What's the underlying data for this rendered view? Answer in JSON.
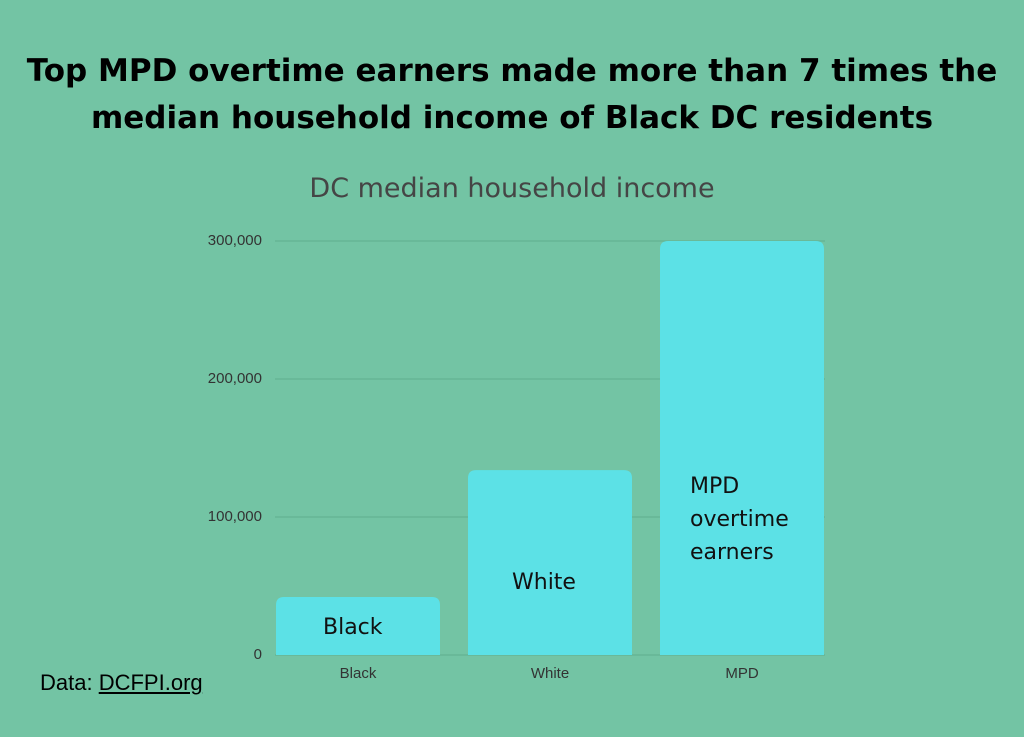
{
  "chart_data": {
    "type": "bar",
    "title": "Top MPD overtime earners made more than 7 times the median household income of Black DC residents",
    "subtitle": "DC median household income",
    "categories": [
      "Black",
      "White",
      "MPD"
    ],
    "values": [
      42000,
      134000,
      300000
    ],
    "bar_labels": [
      "Black",
      "White",
      "MPD overtime earners"
    ],
    "color": "#5ce1e6",
    "ylim": [
      0,
      300000
    ],
    "yticks": [
      0,
      {
        "value": 100000,
        "label": "100,000"
      },
      {
        "value": 200000,
        "label": "200,000"
      },
      {
        "value": 300000,
        "label": "300,000"
      }
    ],
    "grid": true,
    "source_prefix": "Data:",
    "source_link": "DCFPI.org"
  }
}
